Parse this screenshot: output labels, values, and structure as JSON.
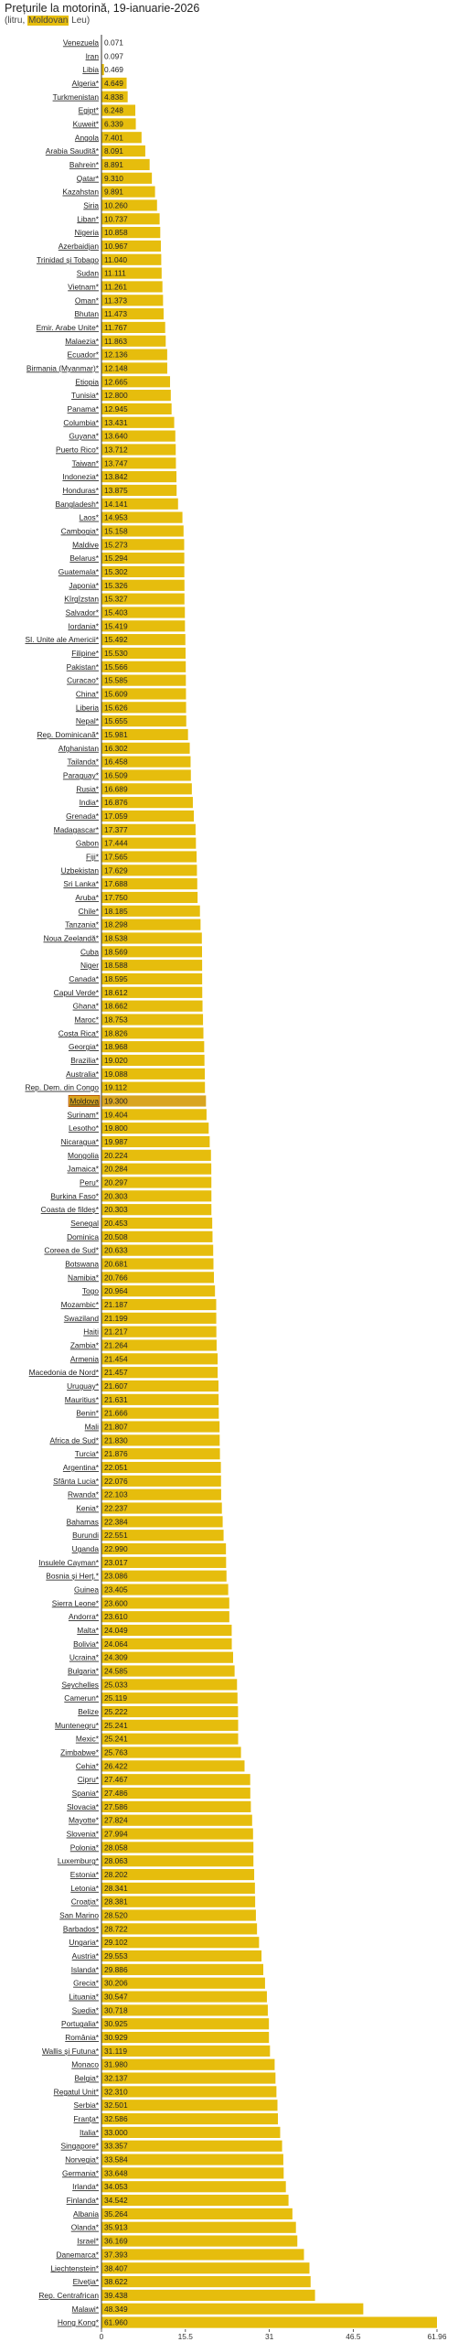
{
  "title": "Prețurile la motorină, 19-ianuarie-2026",
  "subtitle_prefix": "(litru, ",
  "subtitle_highlight": "Moldovan",
  "subtitle_suffix": " Leu)",
  "colors": {
    "bar": "#e6bd0d",
    "highlight": "#d9a520",
    "highlight_outline": "#b34a00",
    "axis": "#333333"
  },
  "chart_data": {
    "type": "bar",
    "orientation": "horizontal",
    "title": "Prețurile la motorină, 19-ianuarie-2026",
    "xlabel": "",
    "ylabel": "",
    "xlim": [
      0,
      61.96
    ],
    "x_ticks": [
      "0",
      "15.5",
      "31",
      "46.5",
      "61.96"
    ],
    "x_tick_values": [
      0,
      15.5,
      31,
      46.5,
      61.96
    ],
    "highlight_category": "Moldova",
    "categories": [
      "Venezuela",
      "Iran",
      "Libia",
      "Algeria*",
      "Turkmenistan",
      "Egipt*",
      "Kuweit*",
      "Angola",
      "Arabia Saudită*",
      "Bahrein*",
      "Qatar*",
      "Kazahstan",
      "Siria",
      "Liban*",
      "Nigeria",
      "Azerbaidjan",
      "Trinidad și Tobago",
      "Sudan",
      "Vietnam*",
      "Oman*",
      "Bhutan",
      "Emir. Arabe Unite*",
      "Malaezia*",
      "Ecuador*",
      "Birmania (Myanmar)*",
      "Etiopia",
      "Tunisia*",
      "Panama*",
      "Columbia*",
      "Guyana*",
      "Puerto Rico*",
      "Taiwan*",
      "Indonezia*",
      "Honduras*",
      "Bangladesh*",
      "Laos*",
      "Cambogia*",
      "Maldive",
      "Belarus*",
      "Guatemala*",
      "Japonia*",
      "Kîrgîzstan",
      "Salvador*",
      "Iordania*",
      "SI. Unite ale Americii*",
      "Filipine*",
      "Pakistan*",
      "Curacao*",
      "China*",
      "Liberia",
      "Nepal*",
      "Rep. Dominicană*",
      "Afghanistan",
      "Tailanda*",
      "Paraguay*",
      "Rusia*",
      "India*",
      "Grenada*",
      "Madagascar*",
      "Gabon",
      "Fiji*",
      "Uzbekistan",
      "Sri Lanka*",
      "Aruba*",
      "Chile*",
      "Tanzania*",
      "Noua Zeelandă*",
      "Cuba",
      "Niger",
      "Canada*",
      "Capul Verde*",
      "Ghana*",
      "Maroc*",
      "Costa Rica*",
      "Georgia*",
      "Brazilia*",
      "Australia*",
      "Rep. Dem. din Congo",
      "Moldova",
      "Surinam*",
      "Lesotho*",
      "Nicaragua*",
      "Mongolia",
      "Jamaica*",
      "Peru*",
      "Burkina Faso*",
      "Coasta de fildeș*",
      "Senegal",
      "Dominica",
      "Coreea de Sud*",
      "Botswana",
      "Namibia*",
      "Togo",
      "Mozambic*",
      "Swaziland",
      "Haiti",
      "Zambia*",
      "Armenia",
      "Macedonia de Nord*",
      "Uruguay*",
      "Mauritius*",
      "Benin*",
      "Mali",
      "Africa de Sud*",
      "Turcia*",
      "Argentina*",
      "Sfânta Lucia*",
      "Rwanda*",
      "Kenia*",
      "Bahamas",
      "Burundi",
      "Uganda",
      "Insulele Cayman*",
      "Bosnia și Herț.*",
      "Guinea",
      "Sierra Leone*",
      "Andorra*",
      "Malta*",
      "Bolivia*",
      "Ucraina*",
      "Bulgaria*",
      "Seychelles",
      "Camerun*",
      "Belize",
      "Muntenegru*",
      "Mexic*",
      "Zimbabwe*",
      "Cehia*",
      "Cipru*",
      "Spania*",
      "Slovacia*",
      "Mayotte*",
      "Slovenia*",
      "Polonia*",
      "Luxemburg*",
      "Estonia*",
      "Letonia*",
      "Croația*",
      "San Marino",
      "Barbados*",
      "Ungaria*",
      "Austria*",
      "Islanda*",
      "Grecia*",
      "Lituania*",
      "Suedia*",
      "Portugalia*",
      "România*",
      "Wallis și Futuna*",
      "Monaco",
      "Belgia*",
      "Regatul Unit*",
      "Serbia*",
      "Franța*",
      "Italia*",
      "Singapore*",
      "Norvegia*",
      "Germania*",
      "Irlanda*",
      "Finlanda*",
      "Albania",
      "Olanda*",
      "Israel*",
      "Danemarca*",
      "Liechtenstein*",
      "Elveția*",
      "Rep. Centrafrican",
      "Malawi*",
      "Hong Kong*"
    ],
    "values": [
      0.071,
      0.097,
      0.469,
      4.649,
      4.838,
      6.248,
      6.339,
      7.401,
      8.091,
      8.891,
      9.31,
      9.891,
      10.26,
      10.737,
      10.858,
      10.967,
      11.04,
      11.111,
      11.261,
      11.373,
      11.473,
      11.767,
      11.863,
      12.136,
      12.148,
      12.665,
      12.8,
      12.945,
      13.431,
      13.64,
      13.712,
      13.747,
      13.842,
      13.875,
      14.141,
      14.953,
      15.158,
      15.273,
      15.294,
      15.302,
      15.326,
      15.327,
      15.403,
      15.419,
      15.492,
      15.53,
      15.566,
      15.585,
      15.609,
      15.626,
      15.655,
      15.981,
      16.302,
      16.458,
      16.509,
      16.689,
      16.876,
      17.059,
      17.377,
      17.444,
      17.565,
      17.629,
      17.688,
      17.75,
      18.185,
      18.298,
      18.538,
      18.569,
      18.588,
      18.595,
      18.612,
      18.662,
      18.753,
      18.826,
      18.968,
      19.02,
      19.088,
      19.112,
      19.3,
      19.404,
      19.8,
      19.987,
      20.224,
      20.284,
      20.297,
      20.303,
      20.303,
      20.453,
      20.508,
      20.633,
      20.681,
      20.766,
      20.964,
      21.187,
      21.199,
      21.217,
      21.264,
      21.454,
      21.457,
      21.607,
      21.631,
      21.666,
      21.807,
      21.83,
      21.876,
      22.051,
      22.076,
      22.103,
      22.237,
      22.384,
      22.551,
      22.99,
      23.017,
      23.086,
      23.405,
      23.6,
      23.61,
      24.049,
      24.064,
      24.309,
      24.585,
      25.033,
      25.119,
      25.222,
      25.241,
      25.241,
      25.763,
      26.422,
      27.467,
      27.486,
      27.586,
      27.824,
      27.994,
      28.058,
      28.063,
      28.202,
      28.341,
      28.381,
      28.52,
      28.722,
      29.102,
      29.553,
      29.886,
      30.206,
      30.547,
      30.718,
      30.925,
      30.929,
      31.119,
      31.98,
      32.137,
      32.31,
      32.501,
      32.586,
      33.0,
      33.357,
      33.584,
      33.648,
      34.053,
      34.542,
      35.264,
      35.913,
      36.169,
      37.393,
      38.407,
      38.622,
      39.438,
      48.349,
      61.96
    ],
    "value_labels": [
      "0.071",
      "0.097",
      "0.469",
      "4.649",
      "4.838",
      "6.248",
      "6.339",
      "7.401",
      "8.091",
      "8.891",
      "9.310",
      "9.891",
      "10.260",
      "10.737",
      "10.858",
      "10.967",
      "11.040",
      "11.111",
      "11.261",
      "11.373",
      "11.473",
      "11.767",
      "11.863",
      "12.136",
      "12.148",
      "12.665",
      "12.800",
      "12.945",
      "13.431",
      "13.640",
      "13.712",
      "13.747",
      "13.842",
      "13.875",
      "14.141",
      "14.953",
      "15.158",
      "15.273",
      "15.294",
      "15.302",
      "15.326",
      "15.327",
      "15.403",
      "15.419",
      "15.492",
      "15.530",
      "15.566",
      "15.585",
      "15.609",
      "15.626",
      "15.655",
      "15.981",
      "16.302",
      "16.458",
      "16.509",
      "16.689",
      "16.876",
      "17.059",
      "17.377",
      "17.444",
      "17.565",
      "17.629",
      "17.688",
      "17.750",
      "18.185",
      "18.298",
      "18.538",
      "18.569",
      "18.588",
      "18.595",
      "18.612",
      "18.662",
      "18.753",
      "18.826",
      "18.968",
      "19.020",
      "19.088",
      "19.112",
      "19.300",
      "19.404",
      "19.800",
      "19.987",
      "20.224",
      "20.284",
      "20.297",
      "20.303",
      "20.303",
      "20.453",
      "20.508",
      "20.633",
      "20.681",
      "20.766",
      "20.964",
      "21.187",
      "21.199",
      "21.217",
      "21.264",
      "21.454",
      "21.457",
      "21.607",
      "21.631",
      "21.666",
      "21.807",
      "21.830",
      "21.876",
      "22.051",
      "22.076",
      "22.103",
      "22.237",
      "22.384",
      "22.551",
      "22.990",
      "23.017",
      "23.086",
      "23.405",
      "23.600",
      "23.610",
      "24.049",
      "24.064",
      "24.309",
      "24.585",
      "25.033",
      "25.119",
      "25.222",
      "25.241",
      "25.241",
      "25.763",
      "26.422",
      "27.467",
      "27.486",
      "27.586",
      "27.824",
      "27.994",
      "28.058",
      "28.063",
      "28.202",
      "28.341",
      "28.381",
      "28.520",
      "28.722",
      "29.102",
      "29.553",
      "29.886",
      "30.206",
      "30.547",
      "30.718",
      "30.925",
      "30.929",
      "31.119",
      "31.980",
      "32.137",
      "32.310",
      "32.501",
      "32.586",
      "33.000",
      "33.357",
      "33.584",
      "33.648",
      "34.053",
      "34.542",
      "35.264",
      "35.913",
      "36.169",
      "37.393",
      "38.407",
      "38.622",
      "39.438",
      "48.349",
      "61.960"
    ]
  }
}
